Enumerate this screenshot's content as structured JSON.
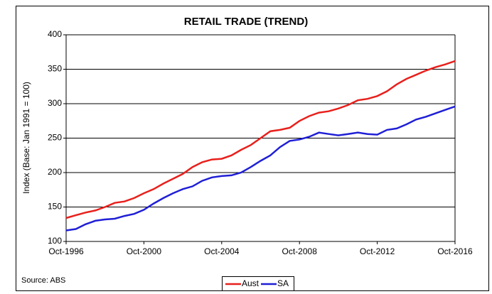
{
  "chart_data": {
    "type": "line",
    "title": "RETAIL TRADE (TREND)",
    "y_label": "Index (Base: Jan 1991 = 100)",
    "source": "Source: ABS",
    "x": [
      "Oct-1996",
      "Apr-1997",
      "Oct-1997",
      "Apr-1998",
      "Oct-1998",
      "Apr-1999",
      "Oct-1999",
      "Apr-2000",
      "Oct-2000",
      "Apr-2001",
      "Oct-2001",
      "Apr-2002",
      "Oct-2002",
      "Apr-2003",
      "Oct-2003",
      "Apr-2004",
      "Oct-2004",
      "Apr-2005",
      "Oct-2005",
      "Apr-2006",
      "Oct-2006",
      "Apr-2007",
      "Oct-2007",
      "Apr-2008",
      "Oct-2008",
      "Apr-2009",
      "Oct-2009",
      "Apr-2010",
      "Oct-2010",
      "Apr-2011",
      "Oct-2011",
      "Apr-2012",
      "Oct-2012",
      "Apr-2013",
      "Oct-2013",
      "Apr-2014",
      "Oct-2014",
      "Apr-2015",
      "Oct-2015",
      "Apr-2016",
      "Oct-2016"
    ],
    "xticks": [
      0,
      8,
      16,
      24,
      32,
      40
    ],
    "series": [
      {
        "name": "Aust",
        "color": "#e8201c",
        "values": [
          134,
          138,
          142,
          145,
          150,
          156,
          158,
          163,
          170,
          176,
          184,
          191,
          198,
          208,
          215,
          219,
          220,
          225,
          233,
          240,
          250,
          260,
          262,
          265,
          275,
          282,
          287,
          289,
          293,
          298,
          305,
          307,
          311,
          318,
          328,
          336,
          342,
          348,
          353,
          357,
          362
        ]
      },
      {
        "name": "SA",
        "color": "#1f1fd6",
        "values": [
          116,
          118,
          125,
          130,
          132,
          133,
          137,
          140,
          146,
          155,
          163,
          170,
          176,
          180,
          188,
          193,
          195,
          196,
          200,
          208,
          217,
          225,
          237,
          246,
          248,
          252,
          258,
          256,
          254,
          256,
          258,
          256,
          255,
          262,
          264,
          270,
          277,
          281,
          286,
          291,
          296
        ]
      }
    ],
    "ylim": [
      100,
      400
    ],
    "yticks": [
      100,
      150,
      200,
      250,
      300,
      350,
      400
    ],
    "grid": true,
    "legend": "bottom"
  }
}
